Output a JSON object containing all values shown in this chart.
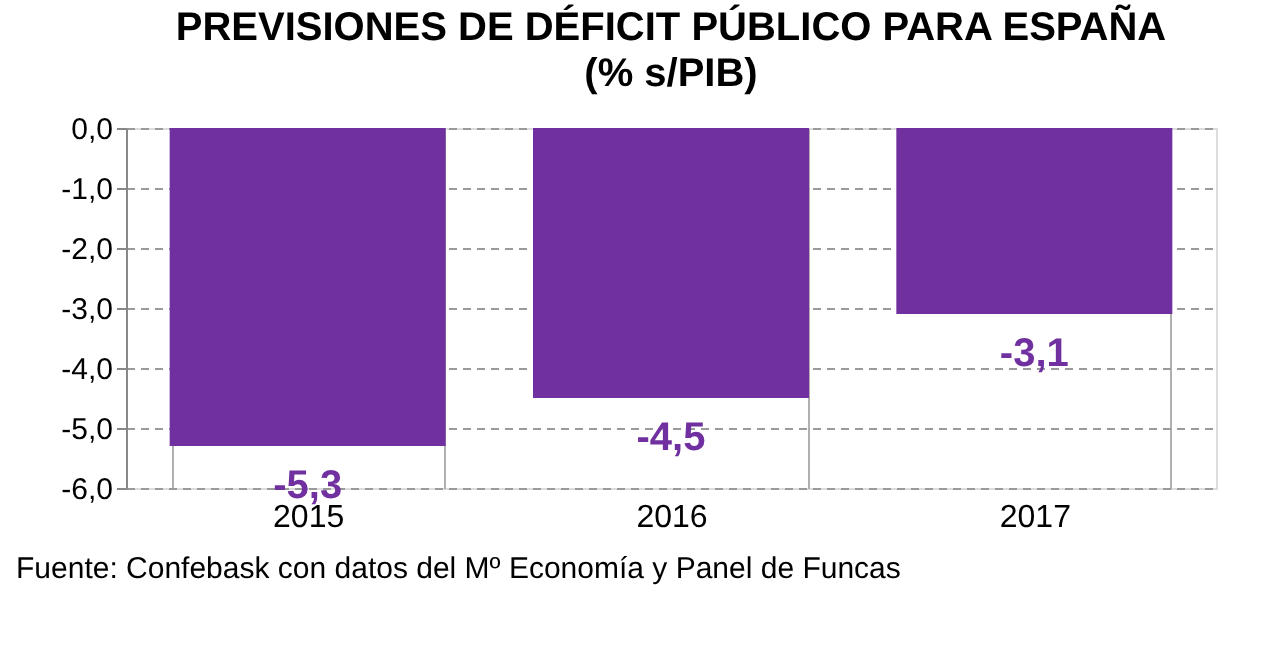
{
  "chart_data": {
    "type": "bar",
    "title": "PREVISIONES DE DÉFICIT PÚBLICO PARA ESPAÑA",
    "subtitle": "(% s/PIB)",
    "categories": [
      "2015",
      "2016",
      "2017"
    ],
    "series": [
      {
        "color": "#7030a0",
        "values": [
          -5.3,
          -4.5,
          -3.1
        ],
        "value_labels": [
          "-5,3",
          "-4,5",
          "-3,1"
        ]
      }
    ],
    "ylim": [
      -6,
      0
    ],
    "yticks": [
      {
        "value": 0,
        "label": "0,0"
      },
      {
        "value": -1,
        "label": "-1,0"
      },
      {
        "value": -2,
        "label": "-2,0"
      },
      {
        "value": -3,
        "label": "-3,0"
      },
      {
        "value": -4,
        "label": "-4,0"
      },
      {
        "value": -5,
        "label": "-5,0"
      },
      {
        "value": -6,
        "label": "-6,0"
      }
    ],
    "grid": true,
    "annotations": [
      "Fuente: Confebask con datos del Mº Economía y Panel de Funcas"
    ]
  }
}
